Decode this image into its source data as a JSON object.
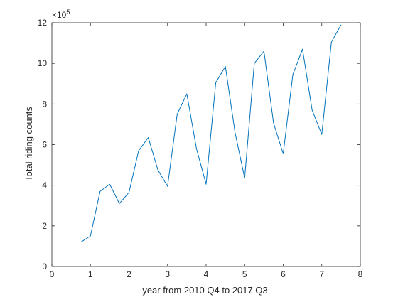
{
  "chart_data": {
    "type": "line",
    "title": "",
    "xlabel": "year from 2010 Q4 to 2017 Q3",
    "ylabel": "Total riding counts",
    "exponent_label": "×10",
    "exponent_power": "5",
    "xlim": [
      0,
      8
    ],
    "ylim": [
      0,
      12
    ],
    "xticks": [
      "0",
      "1",
      "2",
      "3",
      "4",
      "5",
      "6",
      "7",
      "8"
    ],
    "yticks": [
      "0",
      "2",
      "4",
      "6",
      "8",
      "10",
      "12"
    ],
    "grid": false,
    "line_color": "#0072bd",
    "series": [
      {
        "x": [
          0.75,
          1.0,
          1.25,
          1.5,
          1.75,
          2.0,
          2.25,
          2.5,
          2.75,
          3.0,
          3.25,
          3.5,
          3.75,
          4.0,
          4.25,
          4.5,
          4.75,
          5.0,
          5.25,
          5.5,
          5.75,
          6.0,
          6.25,
          6.5,
          6.75,
          7.0,
          7.25,
          7.5
        ],
        "values": [
          1.2,
          1.5,
          3.7,
          4.05,
          3.1,
          3.65,
          5.7,
          6.35,
          4.75,
          3.95,
          7.5,
          8.5,
          5.8,
          4.05,
          9.05,
          9.85,
          6.6,
          4.35,
          10.0,
          10.6,
          7.05,
          5.55,
          9.45,
          10.7,
          7.7,
          6.5,
          11.05,
          11.9
        ]
      }
    ]
  }
}
